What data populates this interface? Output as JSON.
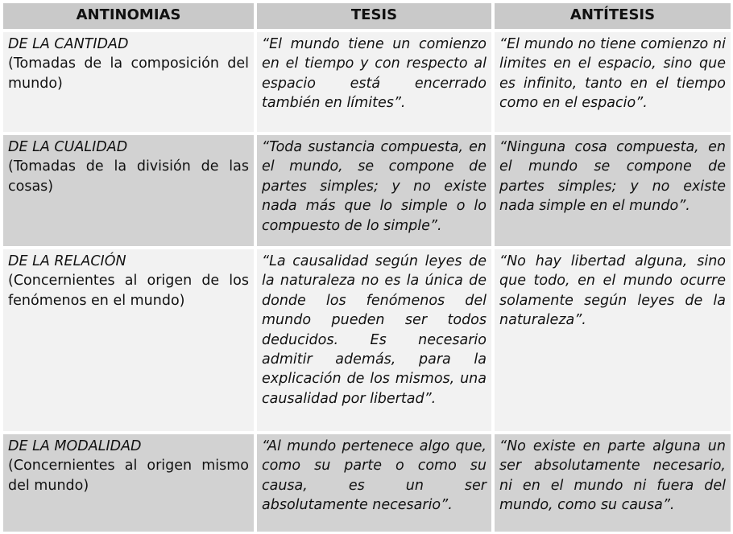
{
  "headers": [
    "ANTINOMIAS",
    "TESIS",
    "ANTÍTESIS"
  ],
  "rows": [
    {
      "title": "DE LA CANTIDAD",
      "subtitle": "(Tomadas de la composición del mundo)",
      "tesis": "“El mundo tiene un comienzo en el tiempo y con respecto al espacio está encerrado también en límites”.",
      "antitesis": "“El mundo no tiene comienzo ni limites en el espacio, sino que es infinito, tanto en el tiempo como en el espacio”."
    },
    {
      "title": "DE LA CUALIDAD",
      "subtitle": "(Tomadas de la división de las cosas)",
      "tesis": "“Toda sustancia compuesta, en el mundo, se compone de partes simples; y no existe nada más que lo simple o lo compuesto de lo simple”.",
      "antitesis": "“Ninguna cosa compuesta, en el mundo se compone de partes simples; y no existe nada simple en el mundo”."
    },
    {
      "title": "DE LA RELACIÓN",
      "subtitle": "(Concernientes al origen de los fenómenos en el mundo)",
      "tesis": "“La causalidad según leyes de la naturaleza no es la única de donde los fenómenos del mundo pueden ser todos deducidos. Es necesario admitir además, para la explicación de los mismos, una causalidad por libertad”.",
      "antitesis": "“No hay libertad alguna, sino que todo, en el mundo ocurre solamente según leyes de la naturaleza”."
    },
    {
      "title": "DE LA MODALIDAD",
      "subtitle": "(Concernientes al origen mismo del mundo)",
      "tesis": "“Al mundo pertenece algo que, como su parte o como su causa, es un ser absolutamente necesario”.",
      "antitesis": "“No existe en parte alguna un ser absolutamente necesario, ni en el mundo ni fuera del mundo, como su causa”."
    }
  ],
  "colors": {
    "header": "#c9c9c9",
    "row_light": "#f2f2f2",
    "row_dark": "#d2d2d2"
  }
}
